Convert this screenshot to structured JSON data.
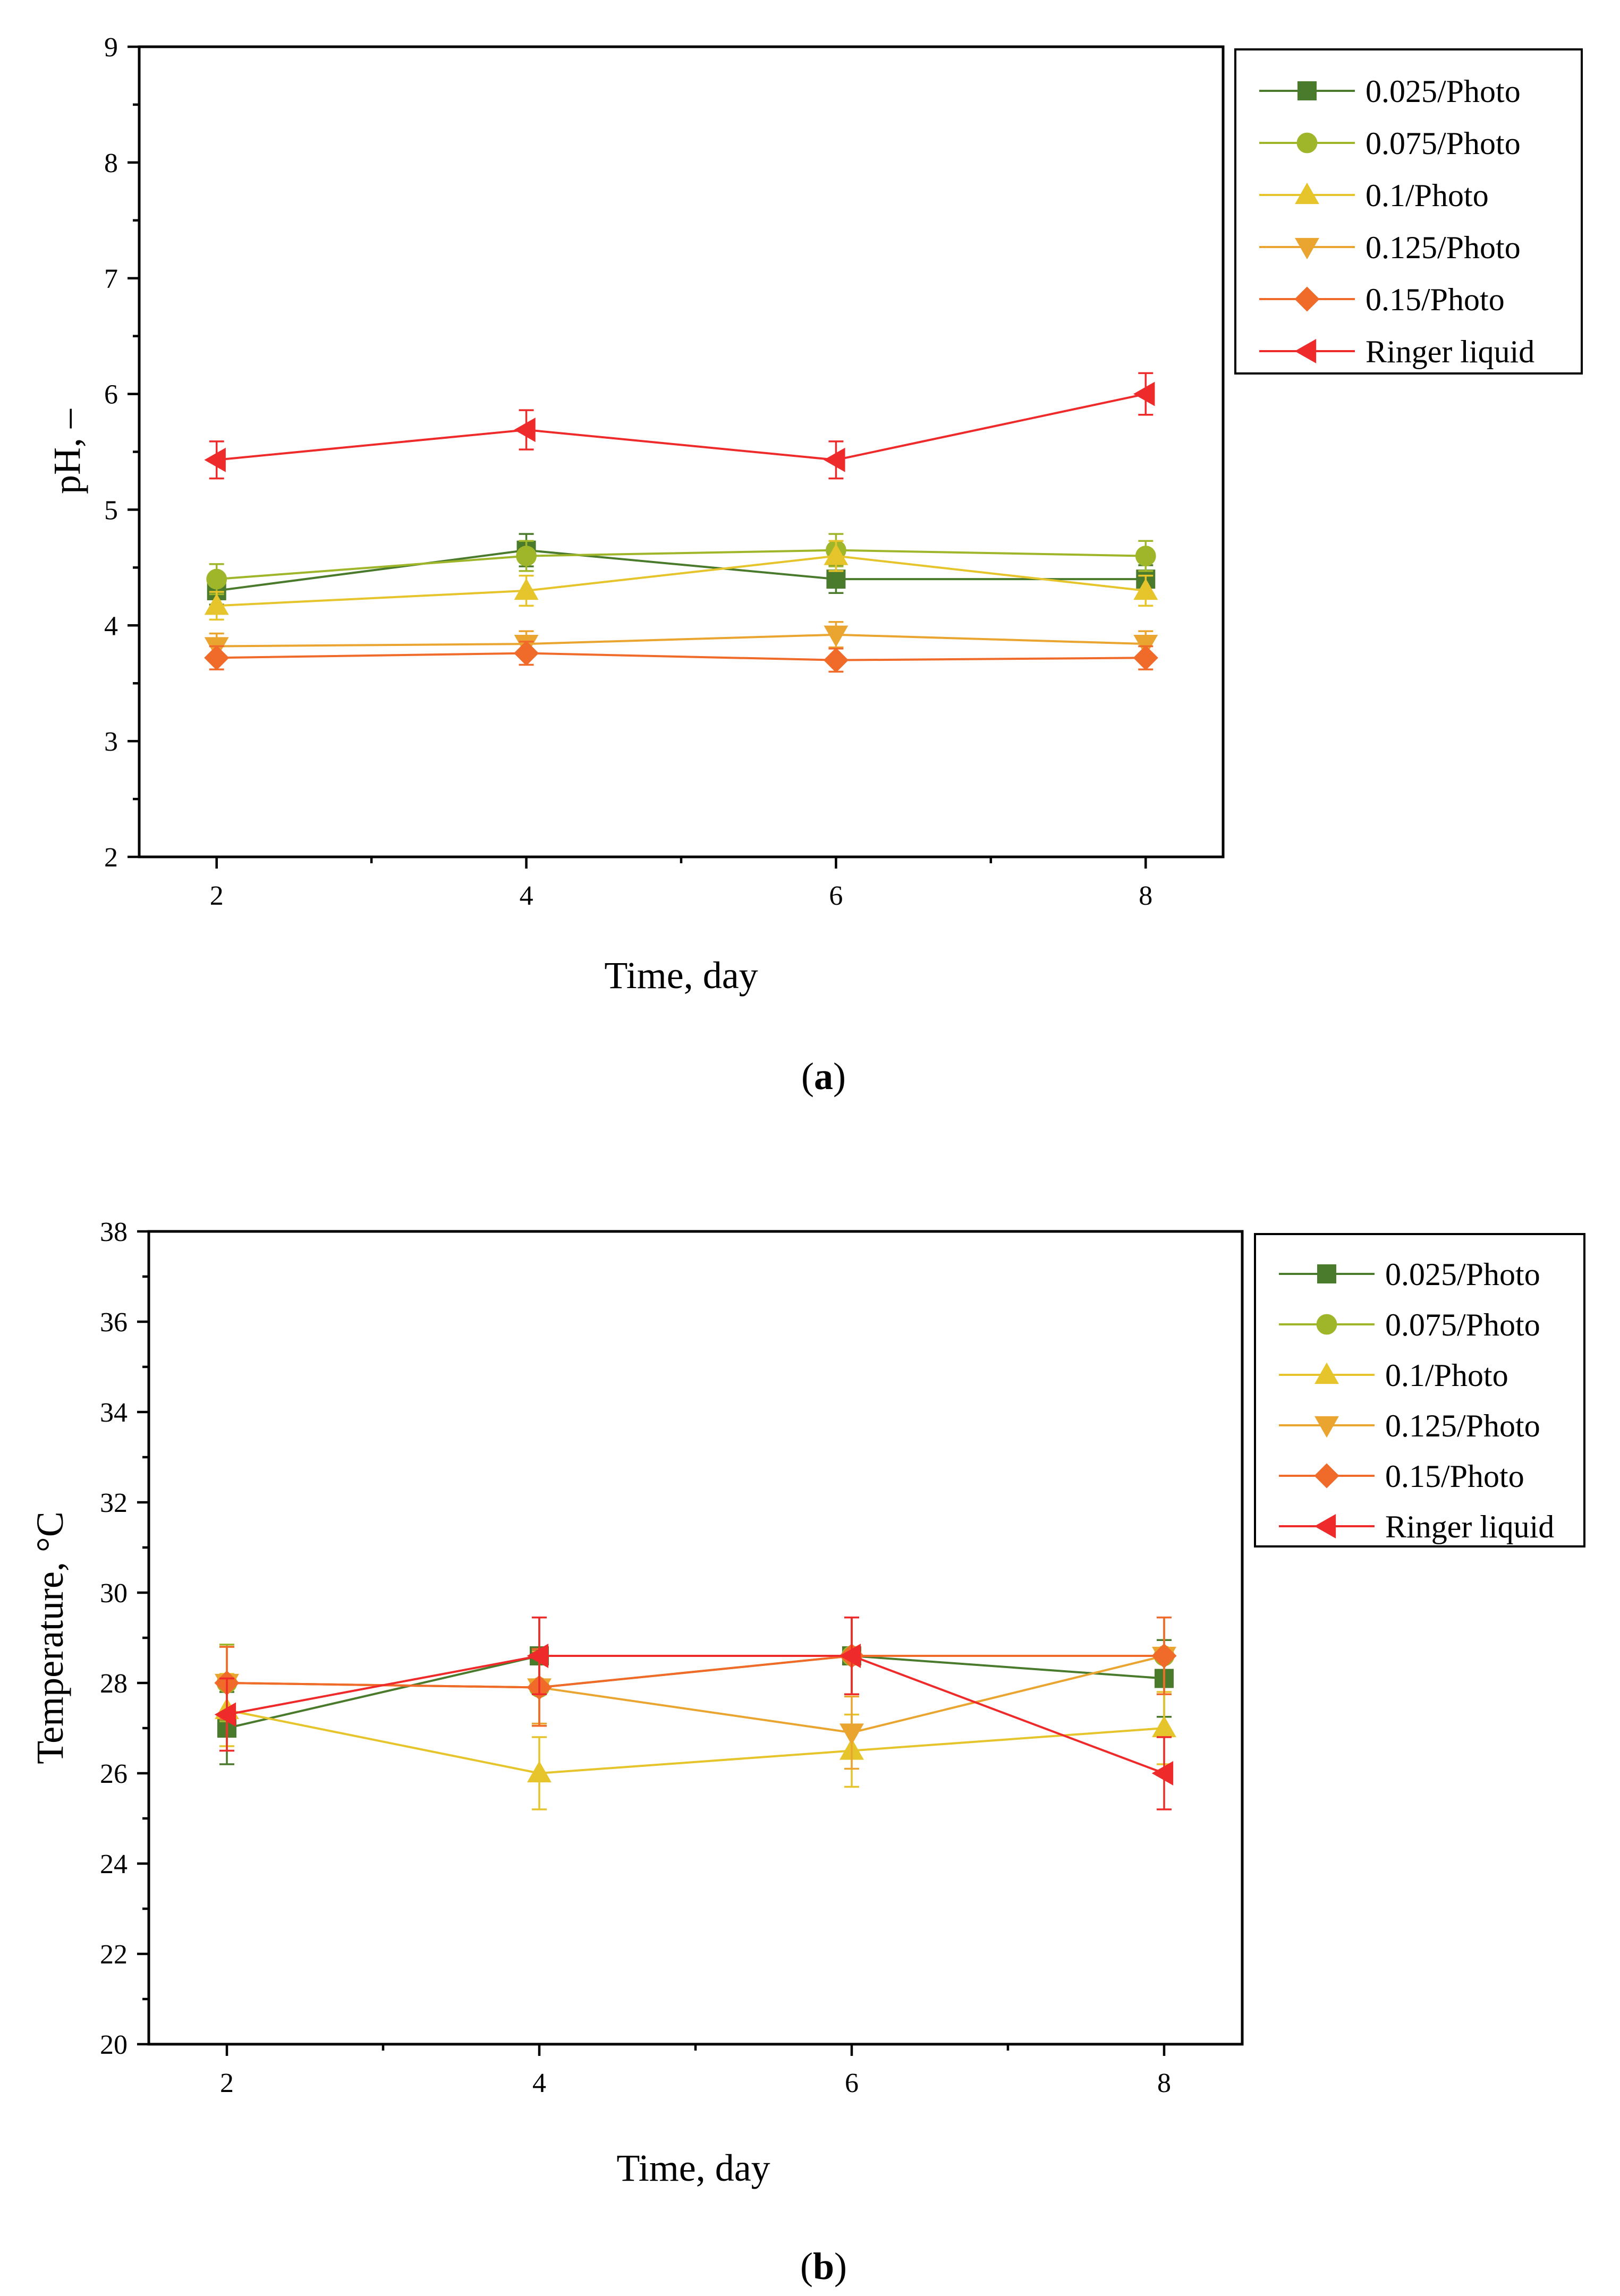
{
  "chart_data": [
    {
      "type": "line",
      "panel": "a",
      "caption_open": "(",
      "caption_letter": "a",
      "caption_close": ")",
      "xlabel": "Time, day",
      "ylabel": "pH, –",
      "xlim": [
        1.5,
        8.5
      ],
      "ylim": [
        2,
        9
      ],
      "xticks": [
        2,
        4,
        6,
        8
      ],
      "yticks": [
        2,
        3,
        4,
        5,
        6,
        7,
        8,
        9
      ],
      "x": [
        2,
        4,
        6,
        8
      ],
      "series": [
        {
          "name": "0.025/Photo",
          "marker": "square",
          "color": "#4a7a2c",
          "values": [
            4.3,
            4.65,
            4.4,
            4.4
          ],
          "errors": [
            0.12,
            0.14,
            0.12,
            0.12
          ]
        },
        {
          "name": "0.075/Photo",
          "marker": "circle",
          "color": "#9fb52a",
          "values": [
            4.4,
            4.6,
            4.65,
            4.6
          ],
          "errors": [
            0.13,
            0.13,
            0.14,
            0.13
          ]
        },
        {
          "name": "0.1/Photo",
          "marker": "triangle-up",
          "color": "#e6c42b",
          "values": [
            4.17,
            4.3,
            4.6,
            4.3
          ],
          "errors": [
            0.12,
            0.13,
            0.13,
            0.13
          ]
        },
        {
          "name": "0.125/Photo",
          "marker": "triangle-down",
          "color": "#eaa430",
          "values": [
            3.82,
            3.84,
            3.92,
            3.84
          ],
          "errors": [
            0.11,
            0.11,
            0.11,
            0.11
          ]
        },
        {
          "name": "0.15/Photo",
          "marker": "diamond",
          "color": "#f06a2a",
          "values": [
            3.72,
            3.76,
            3.7,
            3.72
          ],
          "errors": [
            0.1,
            0.1,
            0.1,
            0.1
          ]
        },
        {
          "name": "Ringer liquid",
          "marker": "triangle-left",
          "color": "#ee2a2a",
          "values": [
            5.43,
            5.69,
            5.43,
            6.0
          ],
          "errors": [
            0.16,
            0.17,
            0.16,
            0.18
          ]
        }
      ]
    },
    {
      "type": "line",
      "panel": "b",
      "caption_open": "(",
      "caption_letter": "b",
      "caption_close": ")",
      "xlabel": "Time, day",
      "ylabel": "Temperature, °C",
      "xlim": [
        1.5,
        8.5
      ],
      "ylim": [
        20,
        38
      ],
      "xticks": [
        2,
        4,
        6,
        8
      ],
      "yticks": [
        20,
        22,
        24,
        26,
        28,
        30,
        32,
        34,
        36,
        38
      ],
      "x": [
        2,
        4,
        6,
        8
      ],
      "series": [
        {
          "name": "0.025/Photo",
          "marker": "square",
          "color": "#4a7a2c",
          "values": [
            27.0,
            28.6,
            28.6,
            28.1
          ],
          "errors": [
            0.8,
            0.85,
            0.85,
            0.85
          ]
        },
        {
          "name": "0.075/Photo",
          "marker": "circle",
          "color": "#9fb52a",
          "values": [
            28.0,
            27.9,
            28.6,
            28.6
          ],
          "errors": [
            0.85,
            0.85,
            0.85,
            0.85
          ]
        },
        {
          "name": "0.1/Photo",
          "marker": "triangle-up",
          "color": "#e6c42b",
          "values": [
            27.4,
            26.0,
            26.5,
            27.0
          ],
          "errors": [
            0.8,
            0.8,
            0.8,
            0.8
          ]
        },
        {
          "name": "0.125/Photo",
          "marker": "triangle-down",
          "color": "#eaa430",
          "values": [
            28.0,
            27.9,
            26.9,
            28.6
          ],
          "errors": [
            0.8,
            0.8,
            0.8,
            0.85
          ]
        },
        {
          "name": "0.15/Photo",
          "marker": "diamond",
          "color": "#f06a2a",
          "values": [
            28.0,
            27.9,
            28.6,
            28.6
          ],
          "errors": [
            0.8,
            0.85,
            0.85,
            0.85
          ]
        },
        {
          "name": "Ringer liquid",
          "marker": "triangle-left",
          "color": "#ee2a2a",
          "values": [
            27.3,
            28.6,
            28.6,
            26.0
          ],
          "errors": [
            0.8,
            0.85,
            0.85,
            0.8
          ]
        }
      ]
    }
  ]
}
